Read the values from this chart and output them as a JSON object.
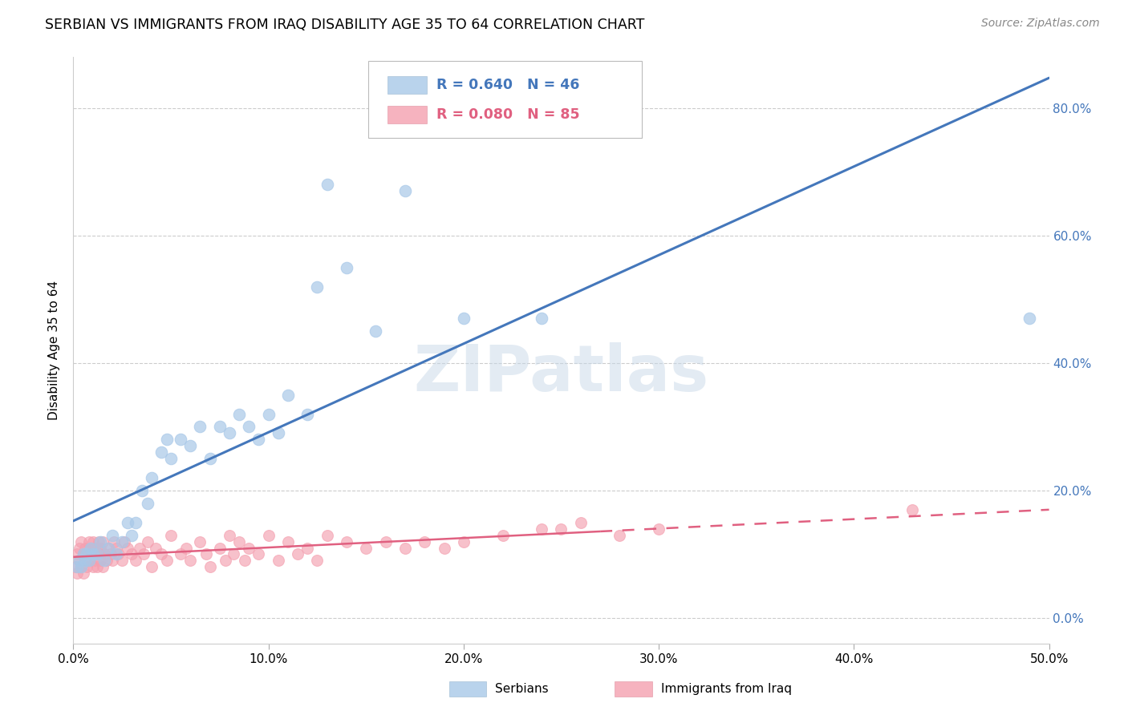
{
  "title": "SERBIAN VS IMMIGRANTS FROM IRAQ DISABILITY AGE 35 TO 64 CORRELATION CHART",
  "source": "Source: ZipAtlas.com",
  "ylabel_label": "Disability Age 35 to 64",
  "xmin": 0.0,
  "xmax": 0.5,
  "ymin": -0.04,
  "ymax": 0.88,
  "serbian_R": 0.64,
  "serbian_N": 46,
  "iraq_R": 0.08,
  "iraq_N": 85,
  "serbian_color": "#a8c8e8",
  "iraq_color": "#f4a0b0",
  "serbian_line_color": "#4477bb",
  "iraq_line_color": "#e06080",
  "watermark": "ZIPatlas",
  "legend_R_color_serbian": "#4477bb",
  "legend_R_color_iraq": "#e06080",
  "serbian_x": [
    0.002,
    0.003,
    0.004,
    0.005,
    0.006,
    0.007,
    0.008,
    0.009,
    0.01,
    0.012,
    0.014,
    0.016,
    0.018,
    0.02,
    0.022,
    0.025,
    0.028,
    0.03,
    0.032,
    0.035,
    0.038,
    0.04,
    0.045,
    0.048,
    0.05,
    0.055,
    0.06,
    0.065,
    0.07,
    0.075,
    0.08,
    0.085,
    0.09,
    0.095,
    0.1,
    0.105,
    0.11,
    0.12,
    0.125,
    0.13,
    0.14,
    0.155,
    0.17,
    0.2,
    0.24,
    0.49
  ],
  "serbian_y": [
    0.08,
    0.09,
    0.08,
    0.1,
    0.09,
    0.1,
    0.09,
    0.11,
    0.1,
    0.1,
    0.12,
    0.09,
    0.11,
    0.13,
    0.1,
    0.12,
    0.15,
    0.13,
    0.15,
    0.2,
    0.18,
    0.22,
    0.26,
    0.28,
    0.25,
    0.28,
    0.27,
    0.3,
    0.25,
    0.3,
    0.29,
    0.32,
    0.3,
    0.28,
    0.32,
    0.29,
    0.35,
    0.32,
    0.52,
    0.68,
    0.55,
    0.45,
    0.67,
    0.47,
    0.47,
    0.47
  ],
  "iraq_x": [
    0.001,
    0.002,
    0.002,
    0.003,
    0.003,
    0.004,
    0.004,
    0.005,
    0.005,
    0.006,
    0.006,
    0.007,
    0.007,
    0.008,
    0.008,
    0.009,
    0.009,
    0.01,
    0.01,
    0.011,
    0.011,
    0.012,
    0.012,
    0.013,
    0.013,
    0.014,
    0.014,
    0.015,
    0.015,
    0.016,
    0.017,
    0.018,
    0.019,
    0.02,
    0.021,
    0.022,
    0.023,
    0.025,
    0.026,
    0.028,
    0.03,
    0.032,
    0.034,
    0.036,
    0.038,
    0.04,
    0.042,
    0.045,
    0.048,
    0.05,
    0.055,
    0.058,
    0.06,
    0.065,
    0.068,
    0.07,
    0.075,
    0.078,
    0.08,
    0.082,
    0.085,
    0.088,
    0.09,
    0.095,
    0.1,
    0.105,
    0.11,
    0.115,
    0.12,
    0.125,
    0.13,
    0.14,
    0.15,
    0.16,
    0.17,
    0.18,
    0.19,
    0.2,
    0.22,
    0.24,
    0.25,
    0.26,
    0.28,
    0.3,
    0.43
  ],
  "iraq_y": [
    0.08,
    0.1,
    0.07,
    0.09,
    0.11,
    0.08,
    0.12,
    0.1,
    0.07,
    0.11,
    0.09,
    0.1,
    0.08,
    0.12,
    0.09,
    0.11,
    0.1,
    0.08,
    0.12,
    0.1,
    0.09,
    0.11,
    0.08,
    0.12,
    0.1,
    0.09,
    0.11,
    0.08,
    0.12,
    0.1,
    0.09,
    0.11,
    0.1,
    0.09,
    0.12,
    0.11,
    0.1,
    0.09,
    0.12,
    0.11,
    0.1,
    0.09,
    0.11,
    0.1,
    0.12,
    0.08,
    0.11,
    0.1,
    0.09,
    0.13,
    0.1,
    0.11,
    0.09,
    0.12,
    0.1,
    0.08,
    0.11,
    0.09,
    0.13,
    0.1,
    0.12,
    0.09,
    0.11,
    0.1,
    0.13,
    0.09,
    0.12,
    0.1,
    0.11,
    0.09,
    0.13,
    0.12,
    0.11,
    0.12,
    0.11,
    0.12,
    0.11,
    0.12,
    0.13,
    0.14,
    0.14,
    0.15,
    0.13,
    0.14,
    0.17
  ]
}
